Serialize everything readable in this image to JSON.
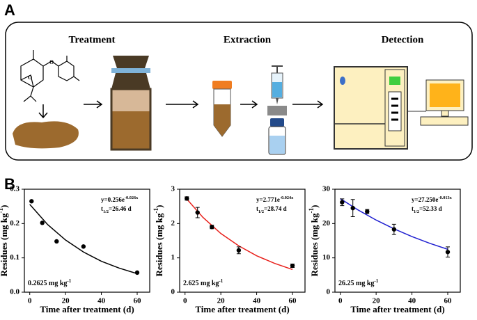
{
  "figure": {
    "panel_a": "A",
    "panel_b": "B",
    "steps": [
      "Treatment",
      "Extraction",
      "Detection"
    ]
  },
  "chart_data": [
    {
      "type": "scatter",
      "x": [
        1,
        7,
        15,
        30,
        60
      ],
      "values": [
        0.265,
        0.202,
        0.148,
        0.133,
        0.057
      ],
      "color": "#000000",
      "fit": {
        "x": [
          0,
          10,
          20,
          30,
          40,
          50,
          60
        ],
        "values": [
          0.256,
          0.197,
          0.152,
          0.117,
          0.09,
          0.07,
          0.054
        ],
        "color": "#000000"
      },
      "xlim": [
        -3,
        67
      ],
      "xticks": [
        0,
        20,
        40,
        60
      ],
      "ylim": [
        0,
        0.3
      ],
      "yticks": [
        {
          "value": 0,
          "label": "0.0"
        },
        0.1,
        0.2,
        0.3
      ],
      "xlabel": "Time after treatment (d)",
      "ylabel": "Residues (mg kg",
      "ylabel_sup": "-1",
      "ylabel_end": ")",
      "equation": "y=0.256e",
      "equation_exp": "-0.026x",
      "half_life_t": "t",
      "half_life_sub": "1/2",
      "half_life": "=26.46 d",
      "dose": "0.2625 mg kg",
      "dose_sup": "-1"
    },
    {
      "type": "scatter",
      "x": [
        1,
        7,
        15,
        30,
        60
      ],
      "values": [
        2.73,
        2.32,
        1.9,
        1.22,
        0.77
      ],
      "errors": [
        0.05,
        0.15,
        0.05,
        0.1,
        0.05
      ],
      "color": "#000000",
      "fit": {
        "x": [
          0,
          10,
          20,
          30,
          40,
          50,
          60
        ],
        "values": [
          2.771,
          2.18,
          1.71,
          1.35,
          1.06,
          0.84,
          0.66
        ],
        "color": "#e8211c"
      },
      "xlim": [
        -3,
        67
      ],
      "xticks": [
        0,
        20,
        40,
        60
      ],
      "ylim": [
        0,
        3
      ],
      "yticks": [
        0,
        1,
        2,
        3
      ],
      "xlabel": "Time after treatment (d)",
      "ylabel": "Residues (mg kg",
      "ylabel_sup": "-1",
      "ylabel_end": ")",
      "equation": "y=2.771e",
      "equation_exp": "-0.024x",
      "half_life_t": "t",
      "half_life_sub": "1/2",
      "half_life": "=28.74 d",
      "dose": "2.625 mg kg",
      "dose_sup": "-1"
    },
    {
      "type": "scatter",
      "x": [
        1,
        7,
        15,
        30,
        60
      ],
      "values": [
        26.2,
        24.5,
        23.5,
        18.3,
        11.7
      ],
      "errors": [
        1,
        2.5,
        0.6,
        1.5,
        1.5
      ],
      "color": "#000000",
      "fit": {
        "x": [
          0,
          10,
          20,
          30,
          40,
          50,
          60
        ],
        "values": [
          27.25,
          23.93,
          21.01,
          18.45,
          16.2,
          14.23,
          12.49
        ],
        "color": "#1f1fd0"
      },
      "xlim": [
        -3,
        67
      ],
      "xticks": [
        0,
        20,
        40,
        60
      ],
      "ylim": [
        0,
        30
      ],
      "yticks": [
        0,
        10,
        20,
        30
      ],
      "xlabel": "Time after treatment (d)",
      "ylabel": "Residues (mg kg",
      "ylabel_sup": "-1",
      "ylabel_end": ")",
      "equation": "y=27.250e",
      "equation_exp": "-0.013x",
      "half_life_t": "t",
      "half_life_sub": "1/2",
      "half_life": "=52.33 d",
      "dose": "26.25 mg kg",
      "dose_sup": "-1"
    }
  ]
}
